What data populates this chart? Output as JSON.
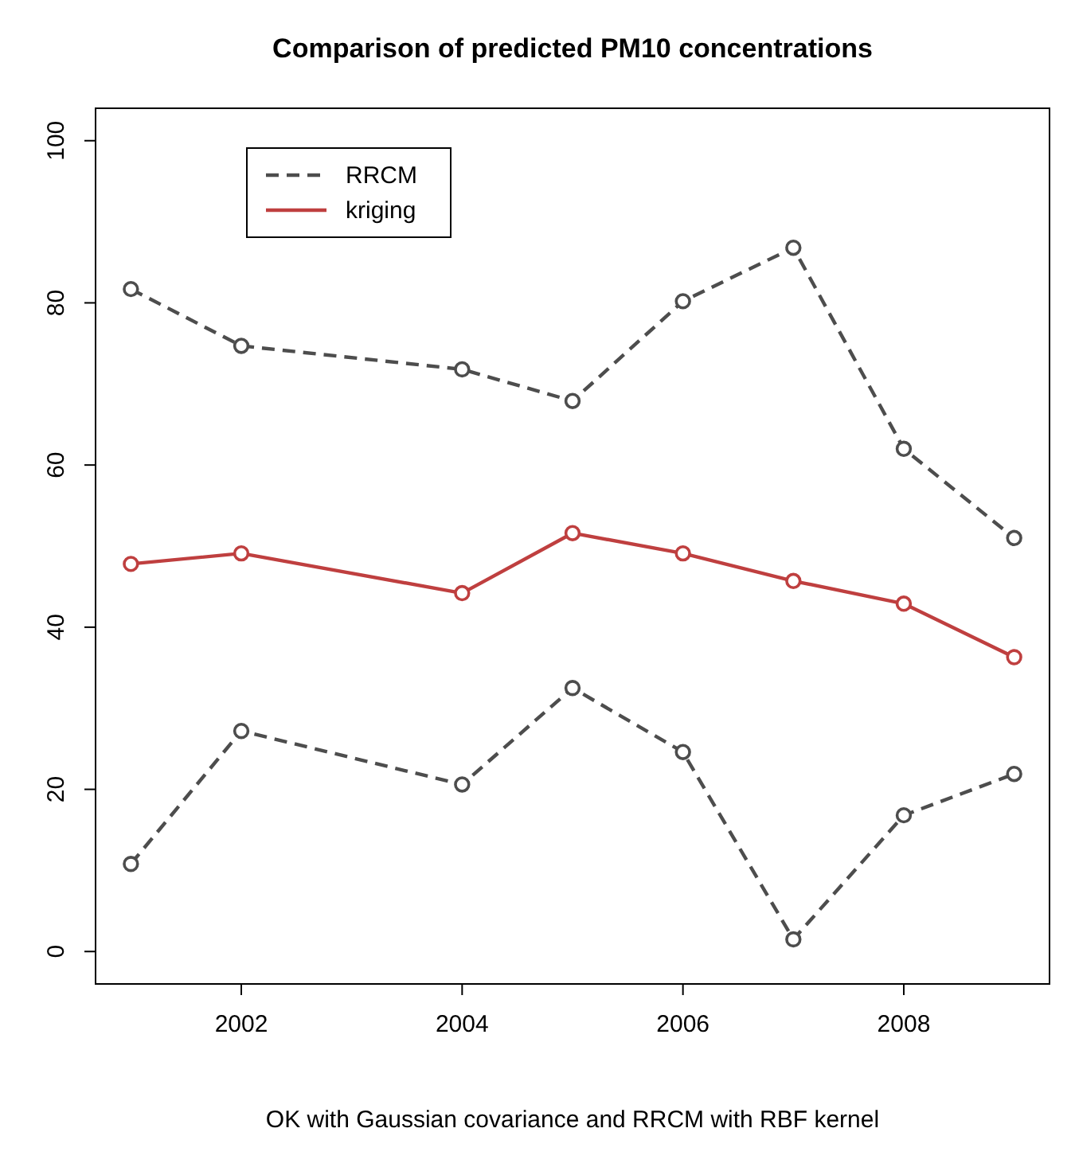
{
  "chart_data": {
    "type": "line",
    "title": "Comparison of predicted PM10 concentrations",
    "xlabel": "OK with Gaussian covariance and RRCM with RBF kernel",
    "x": [
      2001,
      2002,
      2004,
      2005,
      2006,
      2007,
      2008,
      2009
    ],
    "series": [
      {
        "name": "RRCM",
        "color": "#4d4d4d",
        "line_style": "dashed",
        "values": [
          81.7,
          74.7,
          71.8,
          67.9,
          80.2,
          86.8,
          62.0,
          51.0
        ]
      },
      {
        "name": "kriging",
        "color": "#bf3f3f",
        "line_style": "solid",
        "values": [
          47.8,
          49.1,
          44.2,
          51.6,
          49.1,
          45.7,
          42.9,
          36.3
        ]
      },
      {
        "color": "#4d4d4d",
        "line_style": "dashed",
        "values": [
          10.8,
          27.2,
          20.6,
          32.5,
          24.6,
          1.5,
          16.8,
          21.9
        ]
      }
    ],
    "xlim": [
      2000.68,
      2009.32
    ],
    "xticks": [
      2002,
      2004,
      2006,
      2008
    ],
    "ylim": [
      -4,
      104
    ],
    "yticks": [
      0,
      20,
      40,
      60,
      80,
      100
    ],
    "marker": "circle",
    "legend": "top left",
    "grid": false
  }
}
